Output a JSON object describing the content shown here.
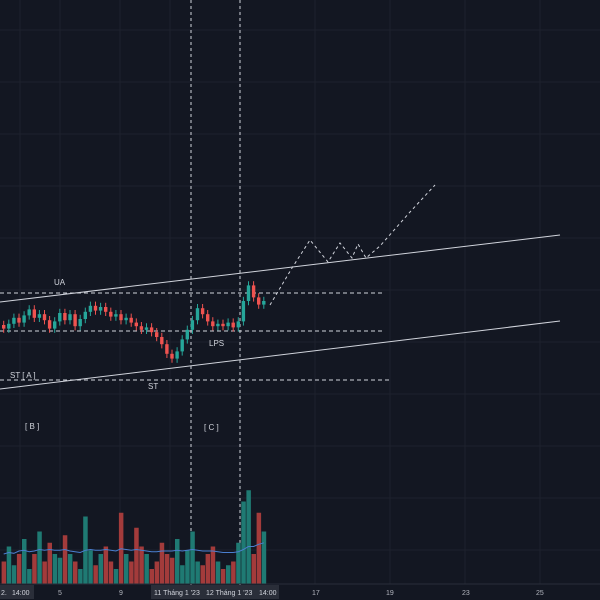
{
  "colors": {
    "background": "#131722",
    "grid": "#1e222d",
    "up": "#26a69a",
    "down": "#ef5350",
    "vol_up": "#1f7a73",
    "vol_down": "#a33b3b",
    "line": "#d1d4dc",
    "ma": "#4a7fd0",
    "axis_box": "#2a2e39"
  },
  "annotations": {
    "ua": "UA",
    "st_a": "ST [ A ]",
    "b": "[ B ]",
    "st": "ST",
    "c": "[ C ]",
    "lps": "LPS"
  },
  "time_axis": {
    "ticks": [
      "2.",
      "14:00",
      "5",
      "9",
      "11 Tháng 1 '23",
      "12 Tháng 1 '23",
      "14:00",
      "17",
      "19",
      "23",
      "25"
    ]
  },
  "chart_data": {
    "type": "candlestick",
    "title": "",
    "xlabel": "",
    "ylabel": "",
    "price_axis_visible": false,
    "grid": true,
    "candles": [
      {
        "o": 0.0,
        "c": -0.3
      },
      {
        "o": -0.3,
        "c": 0.1
      },
      {
        "o": 0.1,
        "c": 0.6
      },
      {
        "o": 0.6,
        "c": 0.2
      },
      {
        "o": 0.2,
        "c": 0.8
      },
      {
        "o": 0.8,
        "c": 1.3
      },
      {
        "o": 1.3,
        "c": 0.6
      },
      {
        "o": 0.6,
        "c": 0.9
      },
      {
        "o": 0.9,
        "c": 0.4
      },
      {
        "o": 0.4,
        "c": -0.3
      },
      {
        "o": -0.3,
        "c": 0.3
      },
      {
        "o": 0.3,
        "c": 1.0
      },
      {
        "o": 1.0,
        "c": 0.4
      },
      {
        "o": 0.4,
        "c": 0.9
      },
      {
        "o": 0.9,
        "c": -0.1
      },
      {
        "o": -0.1,
        "c": 0.5
      },
      {
        "o": 0.5,
        "c": 1.1
      },
      {
        "o": 1.1,
        "c": 1.6
      },
      {
        "o": 1.6,
        "c": 1.2
      },
      {
        "o": 1.2,
        "c": 1.5
      },
      {
        "o": 1.5,
        "c": 1.1
      },
      {
        "o": 1.1,
        "c": 0.7
      },
      {
        "o": 0.7,
        "c": 0.9
      },
      {
        "o": 0.9,
        "c": 0.4
      },
      {
        "o": 0.4,
        "c": 0.6
      },
      {
        "o": 0.6,
        "c": 0.2
      },
      {
        "o": 0.2,
        "c": -0.1
      },
      {
        "o": -0.1,
        "c": -0.4
      },
      {
        "o": -0.4,
        "c": -0.2
      },
      {
        "o": -0.2,
        "c": -0.6
      },
      {
        "o": -0.6,
        "c": -1.0
      },
      {
        "o": -1.0,
        "c": -1.6
      },
      {
        "o": -1.6,
        "c": -2.4
      },
      {
        "o": -2.4,
        "c": -2.8
      },
      {
        "o": -2.8,
        "c": -2.2
      },
      {
        "o": -2.2,
        "c": -1.2
      },
      {
        "o": -1.2,
        "c": -0.4
      },
      {
        "o": -0.4,
        "c": 0.4
      },
      {
        "o": 0.4,
        "c": 1.4
      },
      {
        "o": 1.4,
        "c": 0.9
      },
      {
        "o": 0.9,
        "c": 0.3
      },
      {
        "o": 0.3,
        "c": -0.1
      },
      {
        "o": -0.1,
        "c": 0.1
      },
      {
        "o": 0.1,
        "c": -0.1
      },
      {
        "o": -0.1,
        "c": 0.2
      },
      {
        "o": 0.2,
        "c": -0.2
      },
      {
        "o": -0.2,
        "c": 0.3
      },
      {
        "o": 0.3,
        "c": 2.0
      },
      {
        "o": 2.0,
        "c": 3.3
      },
      {
        "o": 3.3,
        "c": 2.3
      },
      {
        "o": 2.3,
        "c": 1.7
      },
      {
        "o": 1.7,
        "c": 2.0
      }
    ],
    "volume": [
      3,
      5,
      2.5,
      4,
      6,
      2,
      4,
      7,
      3,
      5.5,
      4,
      3.5,
      6.5,
      4,
      3,
      2,
      9,
      4.5,
      2.5,
      4,
      5,
      3,
      2,
      9.5,
      4,
      3,
      7.5,
      5,
      4,
      2,
      3,
      5.5,
      4,
      3.5,
      6,
      2.5,
      4.5,
      7,
      3,
      2.5,
      4,
      5,
      3,
      2,
      2.5,
      3,
      5.5,
      11,
      12.5,
      4,
      9.5,
      7
    ],
    "volume_ma": [
      4,
      4.2,
      4.1,
      4.4,
      4.5,
      4.3,
      4.4,
      4.6,
      4.5,
      4.6,
      4.5,
      4.5,
      4.6,
      4.4,
      4.3,
      4.2,
      4.5,
      4.6,
      4.5,
      4.5,
      4.6,
      4.5,
      4.4,
      4.7,
      4.6,
      4.5,
      4.6,
      4.5,
      4.4,
      4.3,
      4.3,
      4.4,
      4.4,
      4.4,
      4.5,
      4.4,
      4.5,
      4.6,
      4.5,
      4.4,
      4.4,
      4.4,
      4.3,
      4.2,
      4.2,
      4.2,
      4.3,
      4.6,
      5.0,
      5.0,
      5.3,
      5.5
    ]
  }
}
